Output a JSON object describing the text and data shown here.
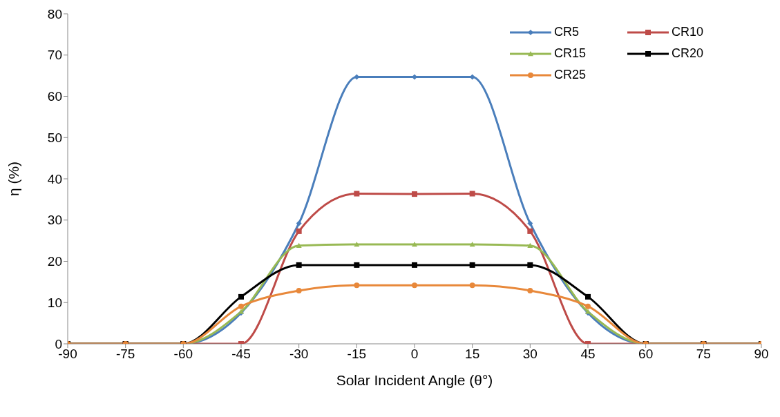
{
  "chart_data": {
    "type": "line",
    "xlabel": "Solar Incident Angle (θ°)",
    "ylabel": "η (%)",
    "x": [
      -90,
      -75,
      -60,
      -45,
      -30,
      -15,
      0,
      15,
      30,
      45,
      60,
      75,
      90
    ],
    "xlim": [
      -90,
      90
    ],
    "xticks": [
      -90,
      -75,
      -60,
      -45,
      -30,
      -15,
      0,
      15,
      30,
      45,
      60,
      75,
      90
    ],
    "ylim": [
      0,
      80
    ],
    "yticks": [
      0,
      10,
      20,
      30,
      40,
      50,
      60,
      70,
      80
    ],
    "grid": false,
    "legend": "top right",
    "line_style": "solid",
    "series": [
      {
        "name": "CR5",
        "color": "#4a7ebb",
        "marker": "diamond",
        "values": [
          0,
          0,
          0,
          7.5,
          29.2,
          64.7,
          64.7,
          64.7,
          29.2,
          7.5,
          0,
          0,
          0
        ]
      },
      {
        "name": "CR10",
        "color": "#be4b48",
        "marker": "square",
        "values": [
          0,
          0,
          0,
          0,
          27.3,
          36.4,
          36.3,
          36.4,
          27.3,
          0,
          0,
          0,
          0
        ]
      },
      {
        "name": "CR15",
        "color": "#98b954",
        "marker": "triangle",
        "values": [
          0,
          0,
          0,
          7.8,
          23.8,
          24.1,
          24.1,
          24.1,
          23.8,
          7.8,
          0,
          0,
          0
        ]
      },
      {
        "name": "CR20",
        "color": "#000000",
        "marker": "square",
        "values": [
          0,
          0,
          0,
          11.4,
          19.1,
          19.1,
          19.1,
          19.1,
          19.1,
          11.4,
          0,
          0,
          0
        ]
      },
      {
        "name": "CR25",
        "color": "#e8883a",
        "marker": "circle",
        "values": [
          0,
          0,
          0,
          9.1,
          12.9,
          14.2,
          14.2,
          14.2,
          12.9,
          9.1,
          0,
          0,
          0
        ]
      }
    ]
  }
}
